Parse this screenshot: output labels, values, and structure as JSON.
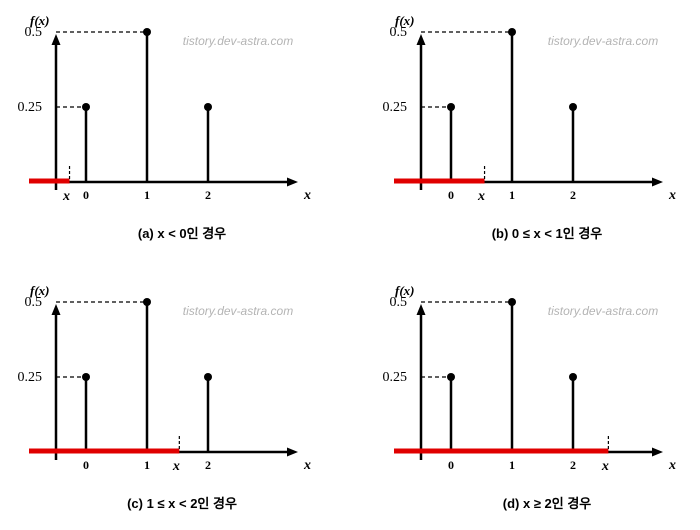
{
  "watermark": "tistory.dev-astra.com",
  "y_axis_label": "f(x)",
  "x_axis_label": "x",
  "marker_label": "x",
  "y_ticks": [
    "0.5",
    "0.25"
  ],
  "x_ticks": [
    "0",
    "1",
    "2"
  ],
  "colors": {
    "highlight": "#e00000",
    "ink": "#000000",
    "watermark": "#b4b4b4"
  },
  "chart_data": {
    "type": "stem",
    "x": [
      0,
      1,
      2
    ],
    "values": [
      0.25,
      0.5,
      0.25
    ]
  },
  "panels": [
    {
      "caption": "(a) x < 0인 경우",
      "marker_x": -0.27,
      "highlight_from": -1,
      "highlight_to": -0.27
    },
    {
      "caption": "(b) 0 ≤ x < 1인 경우",
      "marker_x": 0.55,
      "highlight_from": -1,
      "highlight_to": 0.55
    },
    {
      "caption": "(c) 1 ≤ x < 2인 경우",
      "marker_x": 1.53,
      "highlight_from": -1,
      "highlight_to": 1.53
    },
    {
      "caption": "(d) x ≥ 2인 경우",
      "marker_x": 2.58,
      "highlight_from": -1,
      "highlight_to": 2.58
    }
  ]
}
